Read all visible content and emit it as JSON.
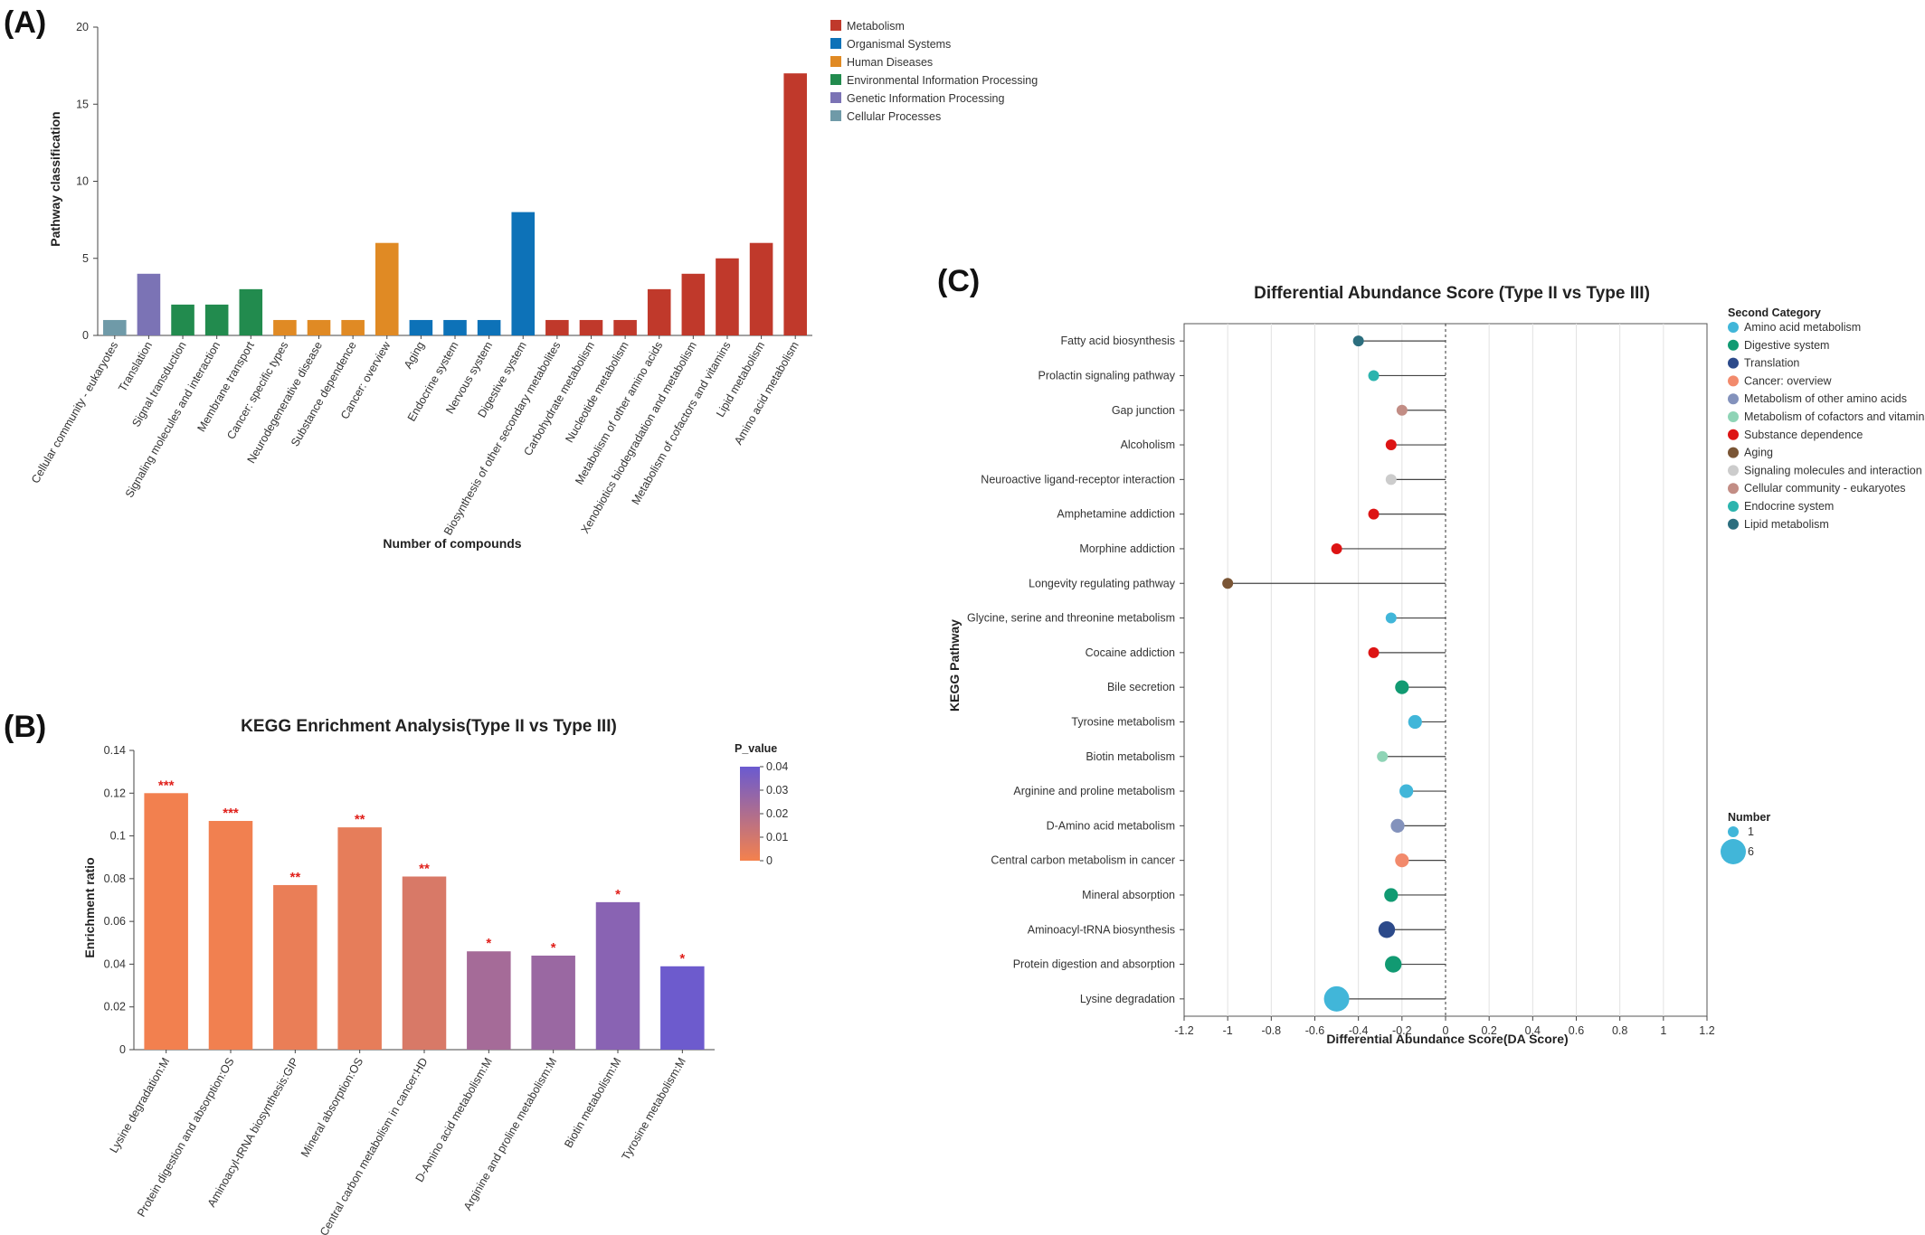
{
  "panel_labels": {
    "a": "(A)",
    "b": "(B)",
    "c": "(C)"
  },
  "chart_data": [
    {
      "id": "A",
      "type": "bar",
      "title": "",
      "xlabel": "Number of compounds",
      "ylabel": "Pathway classification",
      "ylim": [
        0,
        20
      ],
      "yticks": [
        0,
        5,
        10,
        15,
        20
      ],
      "grid": false,
      "legend_position": "top-right",
      "legend": [
        {
          "name": "Metabolism",
          "color": "#c0392b"
        },
        {
          "name": "Organismal Systems",
          "color": "#0d72b8"
        },
        {
          "name": "Human Diseases",
          "color": "#e08a24"
        },
        {
          "name": "Environmental Information Processing",
          "color": "#228b4e"
        },
        {
          "name": "Genetic Information Processing",
          "color": "#7b73b5"
        },
        {
          "name": "Cellular Processes",
          "color": "#6f9aa8"
        }
      ],
      "categories": [
        "Cellular community - eukaryotes",
        "Translation",
        "Signal transduction",
        "Signaling molecules and interaction",
        "Membrane transport",
        "Cancer: specific types",
        "Neurodegenerative disease",
        "Substance dependence",
        "Cancer: overview",
        "Aging",
        "Endocrine system",
        "Nervous system",
        "Digestive system",
        "Biosynthesis of other secondary metabolites",
        "Carbohydrate metabolism",
        "Nucleotide metabolism",
        "Metabolism of other amino acids",
        "Xenobiotics biodegradation and metabolism",
        "Metabolism of cofactors and vitamins",
        "Lipid metabolism",
        "Amino acid metabolism"
      ],
      "values": [
        1,
        4,
        2,
        2,
        3,
        1,
        1,
        1,
        6,
        1,
        1,
        1,
        8,
        1,
        1,
        1,
        3,
        4,
        5,
        6,
        17
      ],
      "groups": [
        "Cellular Processes",
        "Genetic Information Processing",
        "Environmental Information Processing",
        "Environmental Information Processing",
        "Environmental Information Processing",
        "Human Diseases",
        "Human Diseases",
        "Human Diseases",
        "Human Diseases",
        "Organismal Systems",
        "Organismal Systems",
        "Organismal Systems",
        "Organismal Systems",
        "Metabolism",
        "Metabolism",
        "Metabolism",
        "Metabolism",
        "Metabolism",
        "Metabolism",
        "Metabolism",
        "Metabolism"
      ]
    },
    {
      "id": "B",
      "type": "bar",
      "title": "KEGG Enrichment Analysis(Type II vs Type III)",
      "xlabel": "",
      "ylabel": "Enrichment ratio",
      "ylim": [
        0,
        0.14
      ],
      "yticks": [
        "0",
        "0.02",
        "0.04",
        "0.06",
        "0.08",
        "0.1",
        "0.12",
        "0.14"
      ],
      "grid": false,
      "colorbar": {
        "title": "P_value",
        "range": [
          0,
          0.04
        ],
        "ticks": [
          "0",
          "0.01",
          "0.02",
          "0.03",
          "0.04"
        ],
        "color_low": "#f4814d",
        "color_high": "#6a5ad0"
      },
      "categories": [
        "Lysine degradation:M",
        "Protein digestion and absorption:OS",
        "Aminoacyl-tRNA biosynthesis:GIP",
        "Mineral absorption:OS",
        "Central carbon metabolism in cancer:HD",
        "D-Amino acid metabolism:M",
        "Arginine and proline metabolism:M",
        "Biotin metabolism:M",
        "Tyrosine metabolism:M"
      ],
      "values": [
        0.12,
        0.107,
        0.077,
        0.104,
        0.081,
        0.046,
        0.044,
        0.069,
        0.039
      ],
      "p_values": [
        0.0006,
        0.0009,
        0.003,
        0.004,
        0.008,
        0.023,
        0.026,
        0.031,
        0.039
      ],
      "significance": [
        "***",
        "***",
        "**",
        "**",
        "**",
        "*",
        "*",
        "*",
        "*"
      ]
    },
    {
      "id": "C",
      "type": "scatter",
      "title": "Differential Abundance Score (Type II vs Type III)",
      "xlabel": "Differential Abundance Score(DA Score)",
      "ylabel": "KEGG Pathway",
      "xlim": [
        -1.2,
        1.2
      ],
      "xticks": [
        "-1.2",
        "-1",
        "-0.8",
        "-0.6",
        "-0.4",
        "-0.2",
        "0",
        "0.2",
        "0.4",
        "0.6",
        "0.8",
        "1",
        "1.2"
      ],
      "grid": true,
      "legend_position": "right",
      "legend_title": "Second Category",
      "legend": [
        {
          "name": "Amino acid metabolism",
          "color": "#41b6d9"
        },
        {
          "name": "Digestive system",
          "color": "#119a72"
        },
        {
          "name": "Translation",
          "color": "#2c4a8a"
        },
        {
          "name": "Cancer: overview",
          "color": "#f28a6c"
        },
        {
          "name": "Metabolism of other amino acids",
          "color": "#8392bc"
        },
        {
          "name": "Metabolism of cofactors and vitamins",
          "color": "#8fd4b6"
        },
        {
          "name": "Substance dependence",
          "color": "#dd1414"
        },
        {
          "name": "Aging",
          "color": "#7a5535"
        },
        {
          "name": "Signaling molecules and interaction",
          "color": "#cccccc"
        },
        {
          "name": "Cellular community - eukaryotes",
          "color": "#c28d85"
        },
        {
          "name": "Endocrine system",
          "color": "#2cb4ae"
        },
        {
          "name": "Lipid metabolism",
          "color": "#2c6e7e"
        }
      ],
      "size_legend_title": "Number",
      "size_legend": [
        1,
        6
      ],
      "points": [
        {
          "label": "Fatty acid biosynthesis",
          "x": -0.4,
          "category": "Lipid metabolism",
          "number": 1
        },
        {
          "label": "Prolactin signaling pathway",
          "x": -0.33,
          "category": "Endocrine system",
          "number": 1
        },
        {
          "label": "Gap junction",
          "x": -0.2,
          "category": "Cellular community - eukaryotes",
          "number": 1
        },
        {
          "label": "Alcoholism",
          "x": -0.25,
          "category": "Substance dependence",
          "number": 1
        },
        {
          "label": "Neuroactive ligand-receptor interaction",
          "x": -0.25,
          "category": "Signaling molecules and interaction",
          "number": 1
        },
        {
          "label": "Amphetamine addiction",
          "x": -0.33,
          "category": "Substance dependence",
          "number": 1
        },
        {
          "label": "Morphine addiction",
          "x": -0.5,
          "category": "Substance dependence",
          "number": 1
        },
        {
          "label": "Longevity regulating pathway",
          "x": -1.0,
          "category": "Aging",
          "number": 1
        },
        {
          "label": "Glycine, serine and threonine metabolism",
          "x": -0.25,
          "category": "Amino acid metabolism",
          "number": 1
        },
        {
          "label": "Cocaine addiction",
          "x": -0.33,
          "category": "Substance dependence",
          "number": 1
        },
        {
          "label": "Bile secretion",
          "x": -0.2,
          "category": "Digestive system",
          "number": 2
        },
        {
          "label": "Tyrosine metabolism",
          "x": -0.14,
          "category": "Amino acid metabolism",
          "number": 2
        },
        {
          "label": "Biotin metabolism",
          "x": -0.29,
          "category": "Metabolism of cofactors and vitamins",
          "number": 1
        },
        {
          "label": "Arginine and proline metabolism",
          "x": -0.18,
          "category": "Amino acid metabolism",
          "number": 2
        },
        {
          "label": "D-Amino acid metabolism",
          "x": -0.22,
          "category": "Metabolism of other amino acids",
          "number": 2
        },
        {
          "label": "Central carbon metabolism in cancer",
          "x": -0.2,
          "category": "Cancer: overview",
          "number": 2
        },
        {
          "label": "Mineral absorption",
          "x": -0.25,
          "category": "Digestive system",
          "number": 2
        },
        {
          "label": "Aminoacyl-tRNA biosynthesis",
          "x": -0.27,
          "category": "Translation",
          "number": 3
        },
        {
          "label": "Protein digestion and absorption",
          "x": -0.24,
          "category": "Digestive system",
          "number": 3
        },
        {
          "label": "Lysine degradation",
          "x": -0.5,
          "category": "Amino acid metabolism",
          "number": 6
        }
      ]
    }
  ]
}
